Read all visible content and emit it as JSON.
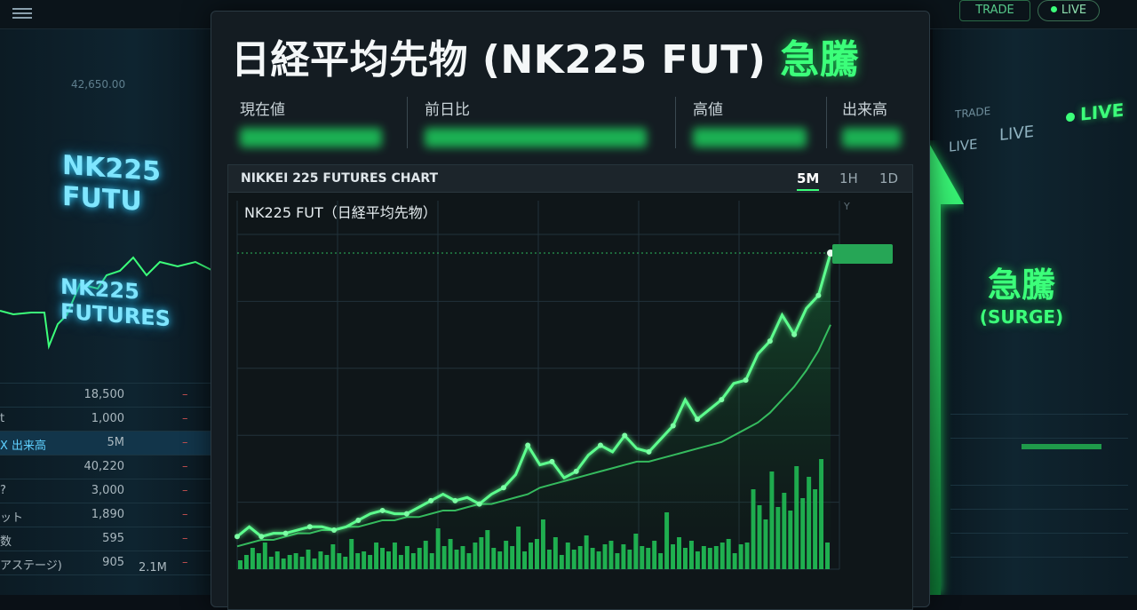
{
  "topbar": {
    "trade_label": "TRADE",
    "live_label": "LIVE"
  },
  "left_panel": {
    "title_top": "NK225 FUTU",
    "title_mid": "NK225 FUTURES",
    "price_label": "42,650.00",
    "rows": [
      {
        "key": "",
        "value": "",
        "mark": ""
      },
      {
        "key": "",
        "value": "18,500",
        "mark": "–"
      },
      {
        "key": "t",
        "value": "1,000",
        "mark": "–"
      },
      {
        "key": "X 出来高",
        "value": "5M",
        "mark": "–",
        "highlight": true
      },
      {
        "key": "",
        "value": "40,220",
        "mark": "–"
      },
      {
        "key": "?",
        "value": "3,000",
        "mark": "–"
      },
      {
        "key": "ット",
        "value": "1,890",
        "mark": "–"
      },
      {
        "key": "数",
        "value": "595",
        "mark": "–"
      },
      {
        "key": "アステージ)",
        "value": "905",
        "mark": "–"
      }
    ],
    "big_value": "2.1M"
  },
  "right_panel": {
    "trade_label": "TRADE",
    "live_labels": [
      "LIVE",
      "LIVE"
    ],
    "live_badge": "LIVE",
    "surge_jp": "急騰",
    "surge_en": "(SURGE)"
  },
  "main": {
    "title_main": "日経平均先物 (NK225 FUT) ",
    "title_surge": "急騰",
    "stats": [
      {
        "label": "現在値"
      },
      {
        "label": "前日比"
      },
      {
        "label": "高値"
      },
      {
        "label": "出来高"
      }
    ],
    "chart": {
      "header_title": "NIKKEI 225 FUTURES CHART",
      "timeframes": [
        "5M",
        "1H",
        "1D"
      ],
      "active_timeframe": "5M",
      "plot_title": "NK225 FUT（日経平均先物）",
      "y_axis_label": "Y"
    }
  },
  "colors": {
    "accent_green": "#3cff7a",
    "panel_bg": "#141c22",
    "chart_bg": "#0f1619"
  },
  "chart_data": {
    "type": "line",
    "title": "NK225 FUT（日経平均先物）",
    "xlabel": "",
    "ylabel": "",
    "timeframe": "5M",
    "ylim": [
      0,
      100
    ],
    "series": [
      {
        "values": [
          10,
          13,
          10,
          11,
          11,
          12,
          13,
          13,
          12,
          13,
          15,
          17,
          18,
          17,
          17,
          19,
          21,
          23,
          21,
          22,
          20,
          23,
          25,
          29,
          38,
          32,
          33,
          28,
          30,
          35,
          38,
          36,
          41,
          37,
          36,
          40,
          44,
          52,
          46,
          49,
          52,
          57,
          58,
          66,
          70,
          78,
          72,
          80,
          84,
          97
        ]
      },
      {
        "values": [
          7,
          8,
          9,
          9,
          10,
          11,
          11,
          12,
          12,
          13,
          13,
          14,
          15,
          15,
          16,
          16,
          17,
          18,
          18,
          19,
          20,
          20,
          21,
          22,
          23,
          25,
          26,
          27,
          28,
          29,
          30,
          31,
          32,
          33,
          33,
          34,
          35,
          36,
          37,
          38,
          39,
          41,
          43,
          45,
          48,
          52,
          56,
          61,
          67,
          75
        ]
      }
    ],
    "volume": [
      5,
      8,
      12,
      9,
      15,
      7,
      10,
      6,
      8,
      9,
      7,
      11,
      6,
      10,
      8,
      14,
      9,
      7,
      17,
      9,
      10,
      8,
      15,
      12,
      10,
      15,
      8,
      13,
      9,
      12,
      16,
      9,
      23,
      13,
      17,
      11,
      13,
      9,
      15,
      18,
      22,
      12,
      10,
      16,
      13,
      24,
      10,
      15,
      17,
      28,
      11,
      18,
      8,
      15,
      11,
      13,
      19,
      12,
      10,
      14,
      16,
      9,
      14,
      11,
      20,
      13,
      12,
      16,
      9,
      32,
      14,
      18,
      12,
      16,
      10,
      13,
      12,
      13,
      15,
      17,
      9,
      14,
      15,
      45,
      36,
      28,
      55,
      35,
      43,
      33,
      58,
      40,
      52,
      45,
      62,
      15
    ]
  }
}
